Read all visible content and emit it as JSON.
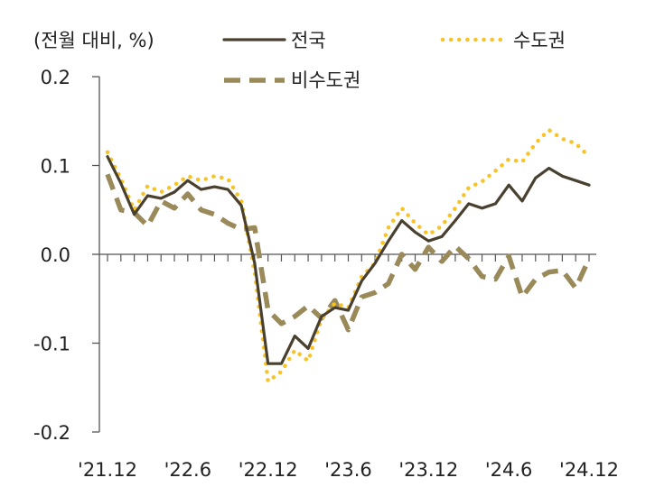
{
  "chart_data": {
    "type": "line",
    "unit_label": "(전월 대비, %)",
    "ylim": [
      -0.2,
      0.2
    ],
    "yticks": [
      0.2,
      0.1,
      0.0,
      -0.1,
      -0.2
    ],
    "ytick_labels": [
      "0.2",
      "0.1",
      "0.0",
      "-0.1",
      "-0.2"
    ],
    "xtick_labels": [
      "'21.12",
      "'22.6",
      "'22.12",
      "'23.6",
      "'23.12",
      "'24.6",
      "'24.12"
    ],
    "xtick_index": [
      0,
      6,
      12,
      18,
      24,
      30,
      36
    ],
    "legend_placement": "top",
    "series": [
      {
        "name": "전국",
        "color": "#4a4030",
        "style": "solid",
        "values": [
          0.11,
          0.08,
          0.045,
          0.066,
          0.063,
          0.07,
          0.083,
          0.073,
          0.076,
          0.073,
          0.055,
          -0.01,
          -0.123,
          -0.123,
          -0.092,
          -0.106,
          -0.07,
          -0.06,
          -0.063,
          -0.03,
          -0.01,
          0.015,
          0.038,
          0.025,
          0.015,
          0.02,
          0.038,
          0.057,
          0.052,
          0.057,
          0.078,
          0.06,
          0.086,
          0.097,
          0.088,
          0.083,
          0.078
        ]
      },
      {
        "name": "수도권",
        "color": "#f7c325",
        "style": "dotted",
        "values": [
          0.115,
          0.085,
          0.05,
          0.077,
          0.07,
          0.078,
          0.088,
          0.083,
          0.088,
          0.085,
          0.06,
          -0.02,
          -0.143,
          -0.132,
          -0.108,
          -0.12,
          -0.073,
          -0.055,
          -0.06,
          -0.025,
          -0.01,
          0.03,
          0.052,
          0.035,
          0.022,
          0.032,
          0.052,
          0.075,
          0.082,
          0.094,
          0.107,
          0.104,
          0.125,
          0.14,
          0.13,
          0.125,
          0.11
        ]
      },
      {
        "name": "비수도권",
        "color": "#9a8a5a",
        "style": "dashed",
        "values": [
          0.09,
          0.05,
          0.047,
          0.032,
          0.06,
          0.052,
          0.068,
          0.05,
          0.045,
          0.035,
          0.028,
          0.03,
          -0.063,
          -0.078,
          -0.07,
          -0.058,
          -0.072,
          -0.052,
          -0.085,
          -0.048,
          -0.043,
          -0.033,
          0.0,
          -0.017,
          0.008,
          -0.008,
          0.009,
          -0.005,
          -0.025,
          -0.028,
          -0.002,
          -0.048,
          -0.028,
          -0.02,
          -0.018,
          -0.038,
          -0.005
        ]
      }
    ]
  }
}
